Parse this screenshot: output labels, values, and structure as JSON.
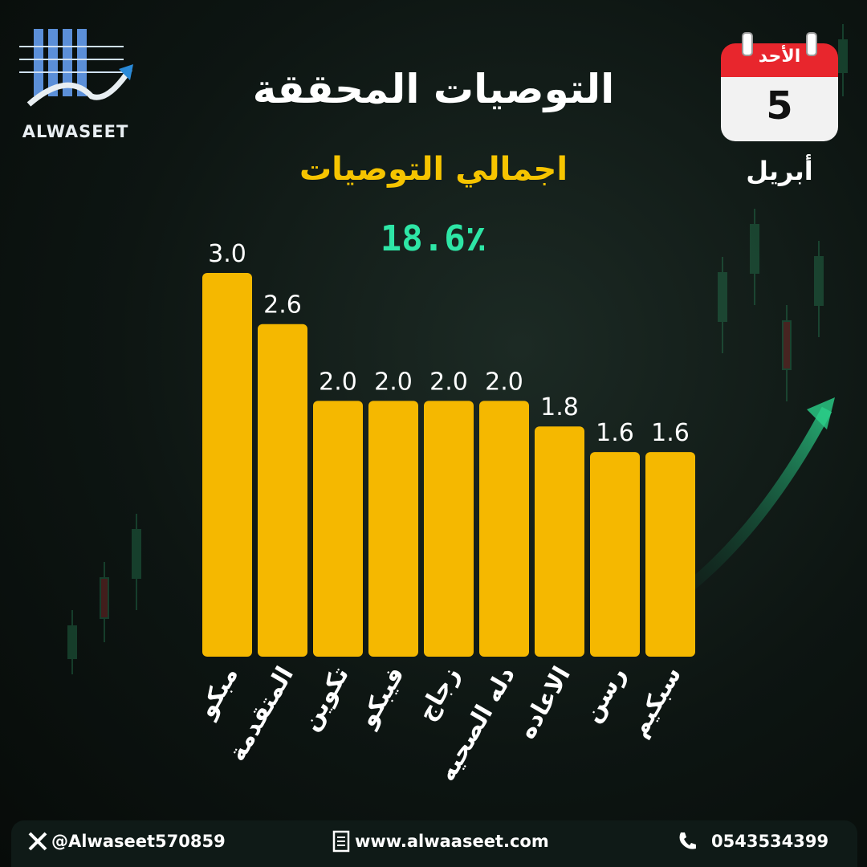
{
  "brand": {
    "logo_text": "ALWASEET"
  },
  "header": {
    "title": "التوصيات المحققة",
    "subtitle": "اجمالي التوصيات",
    "total": "18.6٪"
  },
  "calendar": {
    "day_name": "الأحد",
    "day_number": "5",
    "month": "أبريل"
  },
  "chart_data": {
    "type": "bar",
    "categories": [
      "مبكو",
      "المتقدمة",
      "تكوين",
      "فيبكو",
      "زجاج",
      "دله الصحيه",
      "الاعاده",
      "رسن",
      "سبكيم"
    ],
    "values": [
      3.0,
      2.6,
      2.0,
      2.0,
      2.0,
      2.0,
      1.8,
      1.6,
      1.6
    ],
    "value_labels": [
      "3.0",
      "2.6",
      "2.0",
      "2.0",
      "2.0",
      "2.0",
      "1.8",
      "1.6",
      "1.6"
    ],
    "ylim": [
      0,
      3.0
    ],
    "bar_color": "#f5b800",
    "label_color": "#ffffff",
    "grid": false
  },
  "footer": {
    "x_handle": "@Alwaseet570859",
    "website": "www.alwaaseet.com",
    "phone": "0543534399"
  },
  "colors": {
    "accent_yellow": "#f6c400",
    "accent_green": "#2ee6a6",
    "calendar_red": "#e8262d"
  }
}
